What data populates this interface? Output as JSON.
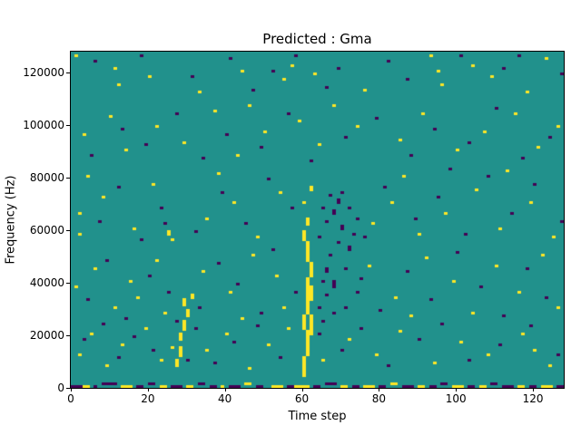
{
  "figure": {
    "title": "Predicted : Gma",
    "xlabel": "Time step",
    "ylabel": "Frequency (Hz)"
  },
  "chart_data": {
    "type": "heatmap",
    "title": "Predicted : Gma",
    "xlabel": "Time step",
    "ylabel": "Frequency (Hz)",
    "x_range": [
      0,
      128
    ],
    "y_range": [
      0,
      128000
    ],
    "x_ticks": [
      0,
      20,
      40,
      60,
      80,
      100,
      120
    ],
    "y_ticks": [
      0,
      20000,
      40000,
      60000,
      80000,
      100000,
      120000
    ],
    "grid": false,
    "legend": null,
    "bins": {
      "x": 128,
      "y": 128,
      "y_hz_per_bin": 1000
    },
    "colors": {
      "background": "#21918c",
      "high": "#fde725",
      "low": "#440154"
    },
    "cell_format": "[x_bin, y_bin, value(1=yellow_high,0=purple_low), width_bins_opt, height_bins_opt]",
    "cells": [
      [
        0,
        0,
        0,
        3
      ],
      [
        3,
        0,
        1,
        2
      ],
      [
        6,
        0,
        0,
        1
      ],
      [
        8,
        1,
        0,
        4
      ],
      [
        13,
        0,
        1,
        3
      ],
      [
        17,
        0,
        0,
        2
      ],
      [
        20,
        1,
        0,
        2
      ],
      [
        23,
        0,
        1,
        2
      ],
      [
        26,
        0,
        0,
        3
      ],
      [
        30,
        0,
        1,
        2
      ],
      [
        33,
        1,
        0,
        2
      ],
      [
        36,
        0,
        0,
        2
      ],
      [
        39,
        0,
        1,
        1
      ],
      [
        41,
        0,
        0,
        3
      ],
      [
        45,
        1,
        1,
        2
      ],
      [
        48,
        0,
        0,
        2
      ],
      [
        52,
        0,
        1,
        3
      ],
      [
        56,
        0,
        0,
        2
      ],
      [
        58,
        0,
        1,
        4
      ],
      [
        63,
        0,
        0,
        2
      ],
      [
        66,
        1,
        0,
        3
      ],
      [
        70,
        0,
        1,
        2
      ],
      [
        73,
        0,
        0,
        2
      ],
      [
        76,
        0,
        1,
        3
      ],
      [
        80,
        0,
        0,
        2
      ],
      [
        83,
        1,
        1,
        2
      ],
      [
        86,
        0,
        0,
        3
      ],
      [
        90,
        0,
        1,
        2
      ],
      [
        93,
        0,
        0,
        2
      ],
      [
        96,
        1,
        0,
        2
      ],
      [
        99,
        0,
        1,
        3
      ],
      [
        103,
        0,
        0,
        2
      ],
      [
        106,
        0,
        1,
        2
      ],
      [
        109,
        1,
        0,
        2
      ],
      [
        112,
        0,
        0,
        3
      ],
      [
        116,
        0,
        1,
        2
      ],
      [
        119,
        0,
        0,
        2
      ],
      [
        122,
        0,
        1,
        3
      ],
      [
        126,
        0,
        0,
        2
      ],
      [
        60,
        4,
        1,
        1,
        8
      ],
      [
        61,
        12,
        1,
        1,
        10
      ],
      [
        60,
        22,
        1,
        1,
        6
      ],
      [
        61,
        28,
        1,
        1,
        14
      ],
      [
        62,
        20,
        1,
        1,
        8
      ],
      [
        62,
        33,
        1,
        1,
        6
      ],
      [
        62,
        42,
        1,
        1,
        6
      ],
      [
        61,
        48,
        1,
        1,
        8
      ],
      [
        60,
        56,
        1,
        1,
        4
      ],
      [
        61,
        62,
        1,
        1,
        3
      ],
      [
        60,
        70,
        1
      ],
      [
        62,
        75,
        1,
        1,
        2
      ],
      [
        65,
        40,
        0
      ],
      [
        66,
        44,
        0,
        1,
        2
      ],
      [
        67,
        50,
        0
      ],
      [
        68,
        38,
        0,
        1,
        3
      ],
      [
        69,
        55,
        0
      ],
      [
        70,
        60,
        0,
        1,
        2
      ],
      [
        66,
        63,
        0
      ],
      [
        68,
        66,
        0,
        1,
        2
      ],
      [
        71,
        45,
        0
      ],
      [
        72,
        52,
        0,
        1,
        2
      ],
      [
        73,
        58,
        0
      ],
      [
        74,
        64,
        0
      ],
      [
        69,
        70,
        0,
        1,
        2
      ],
      [
        67,
        73,
        0
      ],
      [
        65,
        68,
        0
      ],
      [
        70,
        74,
        0
      ],
      [
        72,
        68,
        0
      ],
      [
        64,
        57,
        0
      ],
      [
        66,
        35,
        0
      ],
      [
        64,
        30,
        0
      ],
      [
        65,
        25,
        0
      ],
      [
        71,
        30,
        0
      ],
      [
        74,
        36,
        0
      ],
      [
        68,
        28,
        0
      ],
      [
        27,
        8,
        1,
        1,
        3
      ],
      [
        28,
        12,
        1,
        1,
        4
      ],
      [
        28,
        18,
        1,
        1,
        3
      ],
      [
        29,
        22,
        1,
        1,
        4
      ],
      [
        30,
        27,
        1,
        1,
        3
      ],
      [
        29,
        31,
        1,
        1,
        3
      ],
      [
        26,
        15,
        1
      ],
      [
        31,
        34,
        1,
        1,
        2
      ],
      [
        30,
        10,
        0
      ],
      [
        27,
        25,
        0
      ],
      [
        25,
        58,
        1,
        1,
        2
      ],
      [
        26,
        56,
        1
      ],
      [
        24,
        62,
        0
      ],
      [
        1,
        126,
        1
      ],
      [
        11,
        121,
        1
      ],
      [
        12,
        115,
        1
      ],
      [
        20,
        118,
        1
      ],
      [
        33,
        112,
        1
      ],
      [
        44,
        120,
        1
      ],
      [
        55,
        117,
        1
      ],
      [
        57,
        122,
        1
      ],
      [
        63,
        119,
        1
      ],
      [
        76,
        113,
        1
      ],
      [
        93,
        126,
        1
      ],
      [
        95,
        120,
        1
      ],
      [
        96,
        115,
        1
      ],
      [
        104,
        122,
        1
      ],
      [
        109,
        118,
        1
      ],
      [
        123,
        125,
        1
      ],
      [
        118,
        112,
        1
      ],
      [
        6,
        124,
        0
      ],
      [
        18,
        126,
        0
      ],
      [
        31,
        118,
        0
      ],
      [
        41,
        125,
        0
      ],
      [
        47,
        113,
        0
      ],
      [
        58,
        126,
        0
      ],
      [
        69,
        121,
        0
      ],
      [
        82,
        124,
        0
      ],
      [
        87,
        117,
        0
      ],
      [
        101,
        126,
        0
      ],
      [
        112,
        121,
        0
      ],
      [
        116,
        126,
        0
      ],
      [
        127,
        119,
        0
      ],
      [
        66,
        114,
        0
      ],
      [
        52,
        120,
        0
      ],
      [
        3,
        96,
        1
      ],
      [
        10,
        103,
        1
      ],
      [
        14,
        90,
        1
      ],
      [
        22,
        99,
        1
      ],
      [
        29,
        93,
        1
      ],
      [
        37,
        105,
        1
      ],
      [
        43,
        88,
        1
      ],
      [
        50,
        97,
        1
      ],
      [
        59,
        101,
        1
      ],
      [
        64,
        92,
        1
      ],
      [
        74,
        99,
        1
      ],
      [
        85,
        94,
        1
      ],
      [
        91,
        104,
        1
      ],
      [
        100,
        90,
        1
      ],
      [
        107,
        97,
        1
      ],
      [
        115,
        104,
        1
      ],
      [
        121,
        91,
        1
      ],
      [
        126,
        99,
        1
      ],
      [
        46,
        107,
        1
      ],
      [
        68,
        107,
        1
      ],
      [
        5,
        88,
        0
      ],
      [
        13,
        98,
        0
      ],
      [
        19,
        92,
        0
      ],
      [
        27,
        104,
        0
      ],
      [
        34,
        87,
        0
      ],
      [
        40,
        96,
        0
      ],
      [
        49,
        91,
        0
      ],
      [
        56,
        104,
        0
      ],
      [
        62,
        86,
        0
      ],
      [
        71,
        95,
        0
      ],
      [
        79,
        102,
        0
      ],
      [
        88,
        88,
        0
      ],
      [
        94,
        98,
        0
      ],
      [
        103,
        93,
        0
      ],
      [
        110,
        106,
        0
      ],
      [
        117,
        87,
        0
      ],
      [
        124,
        95,
        0
      ],
      [
        2,
        66,
        1
      ],
      [
        2,
        58,
        1
      ],
      [
        8,
        72,
        1
      ],
      [
        16,
        60,
        1
      ],
      [
        21,
        77,
        1
      ],
      [
        35,
        64,
        1
      ],
      [
        42,
        70,
        1
      ],
      [
        48,
        57,
        1
      ],
      [
        54,
        74,
        1
      ],
      [
        78,
        62,
        1
      ],
      [
        83,
        70,
        1
      ],
      [
        90,
        58,
        1
      ],
      [
        97,
        66,
        1
      ],
      [
        105,
        75,
        1
      ],
      [
        111,
        60,
        1
      ],
      [
        119,
        70,
        1
      ],
      [
        125,
        57,
        1
      ],
      [
        4,
        80,
        1
      ],
      [
        38,
        81,
        1
      ],
      [
        86,
        80,
        1
      ],
      [
        113,
        82,
        1
      ],
      [
        7,
        63,
        0
      ],
      [
        12,
        76,
        0
      ],
      [
        18,
        56,
        0
      ],
      [
        23,
        68,
        0
      ],
      [
        32,
        59,
        0
      ],
      [
        39,
        74,
        0
      ],
      [
        45,
        62,
        0
      ],
      [
        51,
        79,
        0
      ],
      [
        57,
        68,
        0
      ],
      [
        76,
        57,
        0
      ],
      [
        81,
        76,
        0
      ],
      [
        89,
        64,
        0
      ],
      [
        95,
        72,
        0
      ],
      [
        102,
        58,
        0
      ],
      [
        108,
        80,
        0
      ],
      [
        114,
        66,
        0
      ],
      [
        120,
        77,
        0
      ],
      [
        127,
        63,
        0
      ],
      [
        98,
        83,
        0
      ],
      [
        1,
        38,
        1
      ],
      [
        6,
        45,
        1
      ],
      [
        11,
        30,
        1
      ],
      [
        15,
        40,
        1
      ],
      [
        17,
        34,
        1
      ],
      [
        22,
        48,
        1
      ],
      [
        24,
        28,
        1
      ],
      [
        34,
        44,
        1
      ],
      [
        41,
        36,
        1
      ],
      [
        47,
        50,
        1
      ],
      [
        53,
        42,
        1
      ],
      [
        55,
        30,
        1
      ],
      [
        77,
        46,
        1
      ],
      [
        84,
        34,
        1
      ],
      [
        92,
        49,
        1
      ],
      [
        99,
        40,
        1
      ],
      [
        104,
        28,
        1
      ],
      [
        110,
        46,
        1
      ],
      [
        116,
        36,
        1
      ],
      [
        122,
        50,
        1
      ],
      [
        126,
        30,
        1
      ],
      [
        44,
        26,
        1
      ],
      [
        88,
        27,
        1
      ],
      [
        4,
        33,
        0
      ],
      [
        9,
        48,
        0
      ],
      [
        14,
        26,
        0
      ],
      [
        20,
        42,
        0
      ],
      [
        25,
        36,
        0
      ],
      [
        33,
        30,
        0
      ],
      [
        38,
        47,
        0
      ],
      [
        43,
        39,
        0
      ],
      [
        49,
        28,
        0
      ],
      [
        52,
        52,
        0
      ],
      [
        58,
        36,
        0
      ],
      [
        75,
        41,
        0
      ],
      [
        80,
        29,
        0
      ],
      [
        87,
        44,
        0
      ],
      [
        93,
        33,
        0
      ],
      [
        100,
        51,
        0
      ],
      [
        106,
        38,
        0
      ],
      [
        112,
        27,
        0
      ],
      [
        118,
        45,
        0
      ],
      [
        123,
        34,
        0
      ],
      [
        2,
        12,
        1
      ],
      [
        5,
        20,
        1
      ],
      [
        9,
        8,
        1
      ],
      [
        13,
        16,
        1
      ],
      [
        19,
        22,
        1
      ],
      [
        23,
        10,
        1
      ],
      [
        35,
        14,
        1
      ],
      [
        40,
        20,
        1
      ],
      [
        46,
        7,
        1
      ],
      [
        51,
        16,
        1
      ],
      [
        56,
        22,
        1
      ],
      [
        65,
        10,
        1
      ],
      [
        72,
        18,
        1
      ],
      [
        79,
        12,
        1
      ],
      [
        85,
        21,
        1
      ],
      [
        94,
        9,
        1
      ],
      [
        101,
        17,
        1
      ],
      [
        108,
        12,
        1
      ],
      [
        117,
        20,
        1
      ],
      [
        124,
        8,
        1
      ],
      [
        120,
        14,
        1
      ],
      [
        3,
        18,
        0
      ],
      [
        8,
        24,
        0
      ],
      [
        12,
        11,
        0
      ],
      [
        16,
        19,
        0
      ],
      [
        21,
        14,
        0
      ],
      [
        32,
        22,
        0
      ],
      [
        37,
        9,
        0
      ],
      [
        42,
        17,
        0
      ],
      [
        48,
        23,
        0
      ],
      [
        54,
        11,
        0
      ],
      [
        64,
        20,
        0
      ],
      [
        70,
        14,
        0
      ],
      [
        75,
        22,
        0
      ],
      [
        82,
        8,
        0
      ],
      [
        90,
        18,
        0
      ],
      [
        96,
        24,
        0
      ],
      [
        103,
        10,
        0
      ],
      [
        111,
        16,
        0
      ],
      [
        119,
        23,
        0
      ],
      [
        126,
        12,
        0
      ]
    ]
  }
}
